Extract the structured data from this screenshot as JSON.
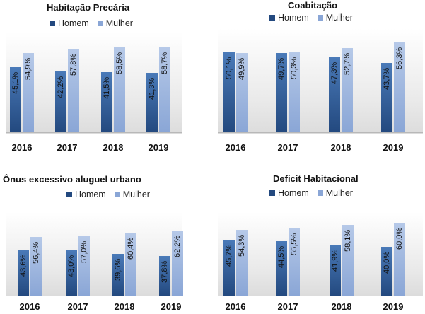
{
  "chart_data": [
    {
      "type": "bar",
      "title": "Habitação Precária",
      "categories": [
        "2016",
        "2017",
        "2018",
        "2019"
      ],
      "series": [
        {
          "name": "Homem",
          "values": [
            45.1,
            42.2,
            41.5,
            41.3
          ],
          "labels": [
            "45,1%",
            "42,2%",
            "41,5%",
            "41,3%"
          ]
        },
        {
          "name": "Mulher",
          "values": [
            54.9,
            57.8,
            58.5,
            58.7
          ],
          "labels": [
            "54,9%",
            "57,8%",
            "58,5%",
            "58,7%"
          ]
        }
      ],
      "ylim": [
        0,
        60
      ]
    },
    {
      "type": "bar",
      "title": "Coabitação",
      "categories": [
        "2016",
        "2017",
        "2018",
        "2019"
      ],
      "series": [
        {
          "name": "Homem",
          "values": [
            50.1,
            49.7,
            47.3,
            43.7
          ],
          "labels": [
            "50,1%",
            "49,7%",
            "47,3%",
            "43,7%"
          ]
        },
        {
          "name": "Mulher",
          "values": [
            49.9,
            50.3,
            52.7,
            56.3
          ],
          "labels": [
            "49,9%",
            "50,3%",
            "52,7%",
            "56,3%"
          ]
        }
      ],
      "ylim": [
        0,
        60
      ]
    },
    {
      "type": "bar",
      "title": "Ônus excessivo aluguel urbano",
      "categories": [
        "2016",
        "2017",
        "2018",
        "2019"
      ],
      "series": [
        {
          "name": "Homem",
          "values": [
            43.6,
            43.0,
            39.6,
            37.8
          ],
          "labels": [
            "43,6%",
            "43,0%",
            "39,6%",
            "37,8%"
          ]
        },
        {
          "name": "Mulher",
          "values": [
            56.4,
            57.0,
            60.4,
            62.2
          ],
          "labels": [
            "56,4%",
            "57,0%",
            "60,4%",
            "62,2%"
          ]
        }
      ],
      "ylim": [
        0,
        60
      ]
    },
    {
      "type": "bar",
      "title": "Deficit Habitacional",
      "categories": [
        "2016",
        "2017",
        "2018",
        "2019"
      ],
      "series": [
        {
          "name": "Homem",
          "values": [
            45.7,
            44.5,
            41.9,
            40.0
          ],
          "labels": [
            "45,7%",
            "44,5%",
            "41,9%",
            "40,0%"
          ]
        },
        {
          "name": "Mulher",
          "values": [
            54.3,
            55.5,
            58.1,
            60.0
          ],
          "labels": [
            "54,3%",
            "55,5%",
            "58,1%",
            "60,0%"
          ]
        }
      ],
      "ylim": [
        0,
        60
      ]
    }
  ],
  "colors": {
    "homem_light": "#4a7ab8",
    "homem_dark": "#23497f",
    "mulher_light": "#b6c9e8",
    "mulher_dark": "#8aa6d6"
  }
}
